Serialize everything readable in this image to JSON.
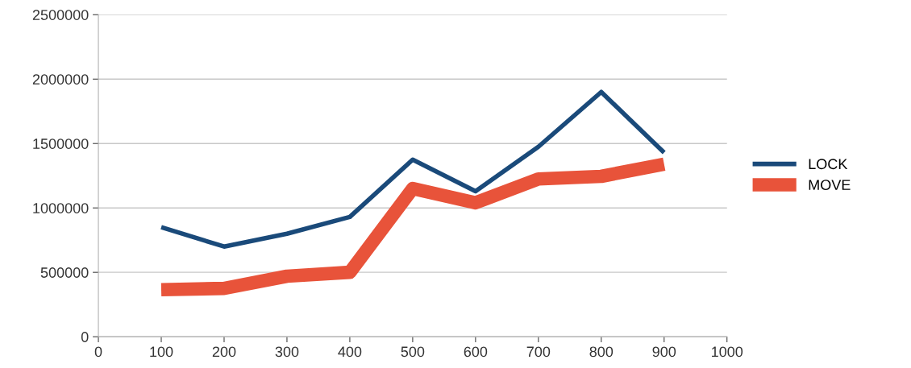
{
  "chart_data": {
    "type": "line",
    "x": [
      100,
      200,
      300,
      400,
      500,
      600,
      700,
      800,
      900
    ],
    "series": [
      {
        "name": "LOCK",
        "color": "#1a4a7a",
        "values": [
          850000,
          700000,
          800000,
          930000,
          1375000,
          1130000,
          1475000,
          1900000,
          1430000
        ]
      },
      {
        "name": "MOVE",
        "color": "#e8533a",
        "values": [
          365000,
          375000,
          470000,
          500000,
          1150000,
          1040000,
          1225000,
          1245000,
          1340000
        ]
      }
    ],
    "xlim": [
      0,
      1000
    ],
    "xticks": [
      0,
      100,
      200,
      300,
      400,
      500,
      600,
      700,
      800,
      900,
      1000
    ],
    "ylim": [
      0,
      2500000
    ],
    "yticks": [
      0,
      500000,
      1000000,
      1500000,
      2000000,
      2500000
    ],
    "grid": "y",
    "legend": "right",
    "marker": "none",
    "line_style": "solid"
  }
}
